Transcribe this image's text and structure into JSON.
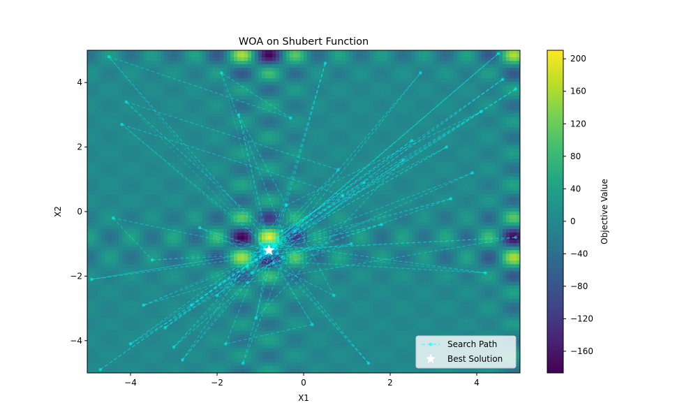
{
  "chart_data": {
    "type": "heatmap",
    "title": "WOA on Shubert Function",
    "xlabel": "X1",
    "ylabel": "X2",
    "xlim": [
      -5,
      5
    ],
    "ylim": [
      -5,
      5
    ],
    "x_ticks": [
      -4,
      -2,
      0,
      2,
      4
    ],
    "y_ticks": [
      -4,
      -2,
      0,
      2,
      4
    ],
    "colormap": "viridis",
    "colorbar": {
      "label": "Objective Value",
      "range": [
        -186.7,
        210.5
      ],
      "ticks": [
        -160,
        -120,
        -80,
        -40,
        0,
        40,
        80,
        120,
        160,
        200
      ]
    },
    "heatmap": {
      "function": "shubert",
      "x_range": [
        -5,
        5
      ],
      "y_range": [
        -5,
        5
      ]
    },
    "grid": false,
    "legend": {
      "position": "lower right",
      "entries": [
        {
          "label": "Search Path",
          "color": "#00ffff",
          "style": "dashed-line-with-dots"
        },
        {
          "label": "Best Solution",
          "color": "#ffffff",
          "style": "star"
        }
      ]
    },
    "best_solution": [
      -0.8,
      -1.2
    ],
    "search_path": {
      "style": "dashed",
      "color": "#00ffff",
      "converges_to": [
        -0.8,
        -1.2
      ],
      "points": [
        [
          -4.7,
          -4.9
        ],
        [
          1.4,
          0.9
        ],
        [
          -3.0,
          -4.2
        ],
        [
          -1.3,
          -1.7
        ],
        [
          4.9,
          3.8
        ],
        [
          -0.6,
          -0.9
        ],
        [
          -4.1,
          3.4
        ],
        [
          0.8,
          1.3
        ],
        [
          -2.0,
          -2.6
        ],
        [
          -0.9,
          -1.3
        ],
        [
          4.5,
          4.9
        ],
        [
          -0.7,
          -1.1
        ],
        [
          -4.5,
          4.8
        ],
        [
          -0.3,
          2.9
        ],
        [
          -1.9,
          4.3
        ],
        [
          -0.5,
          -0.6
        ],
        [
          3.3,
          2.0
        ],
        [
          -0.8,
          -1.2
        ],
        [
          -4.9,
          -2.1
        ],
        [
          1.1,
          -1.0
        ],
        [
          -3.7,
          -2.9
        ],
        [
          -1.1,
          -1.5
        ],
        [
          4.2,
          -1.9
        ],
        [
          -0.7,
          -1.0
        ],
        [
          0.5,
          4.6
        ],
        [
          -1.4,
          -4.7
        ],
        [
          -0.2,
          -0.6
        ],
        [
          2.7,
          4.3
        ],
        [
          -1.2,
          -1.9
        ],
        [
          3.9,
          1.2
        ],
        [
          -0.8,
          -1.2
        ],
        [
          -4.4,
          -0.2
        ],
        [
          -3.5,
          -1.5
        ],
        [
          -0.6,
          -1.3
        ],
        [
          1.5,
          -4.7
        ],
        [
          -1.0,
          -1.0
        ],
        [
          4.1,
          3.1
        ],
        [
          -0.4,
          0.2
        ],
        [
          -2.8,
          -4.6
        ],
        [
          -1.3,
          -2.2
        ],
        [
          4.9,
          -0.8
        ],
        [
          -0.9,
          -1.2
        ],
        [
          -2.4,
          -0.5
        ],
        [
          0.7,
          -2.6
        ],
        [
          -1.5,
          3.0
        ],
        [
          -0.7,
          -1.6
        ],
        [
          3.4,
          0.4
        ],
        [
          -0.8,
          -1.1
        ],
        [
          -4.2,
          2.7
        ],
        [
          0.9,
          0.5
        ],
        [
          -2.6,
          -2.9
        ],
        [
          -1.0,
          -1.4
        ],
        [
          4.6,
          4.1
        ],
        [
          -0.6,
          -0.8
        ],
        [
          -3.2,
          -3.6
        ],
        [
          2.3,
          1.6
        ],
        [
          -1.1,
          -3.3
        ],
        [
          -0.8,
          -1.3
        ],
        [
          0.2,
          -3.5
        ],
        [
          -1.8,
          -4.1
        ],
        [
          -0.9,
          -1.1
        ],
        [
          2.5,
          2.2
        ],
        [
          -4.0,
          -4.1
        ],
        [
          -0.5,
          -1.4
        ],
        [
          1.8,
          -0.4
        ],
        [
          -0.8,
          -1.2
        ]
      ]
    }
  }
}
